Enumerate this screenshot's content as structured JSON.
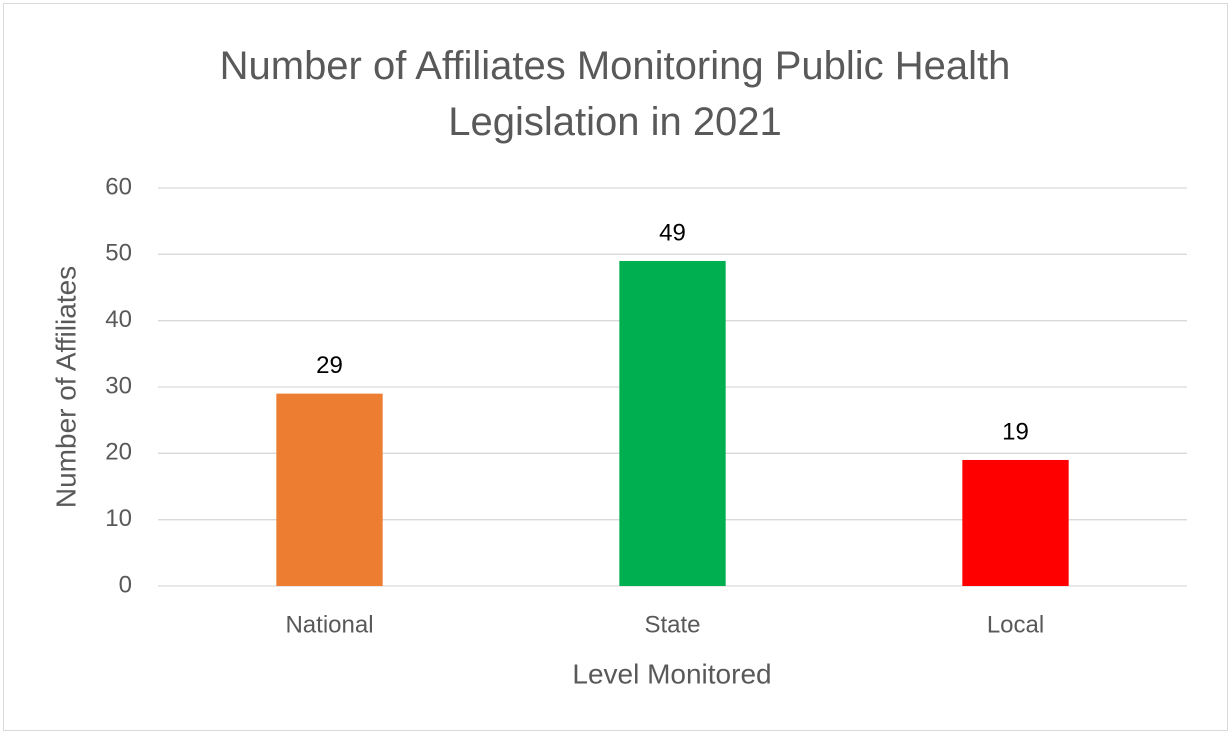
{
  "chart_data": {
    "type": "bar",
    "title": "Number of Affiliates Monitoring Public Health Legislation in 2021",
    "categories": [
      "National",
      "State",
      "Local"
    ],
    "values": [
      29,
      49,
      19
    ],
    "colors": [
      "#ed7d31",
      "#00b050",
      "#ff0000"
    ],
    "x_label": "Level Monitored",
    "y_label": "Number of Affiliates",
    "ylim": [
      0,
      60
    ],
    "yticks": [
      0,
      10,
      20,
      30,
      40,
      50,
      60
    ],
    "grid": true
  }
}
